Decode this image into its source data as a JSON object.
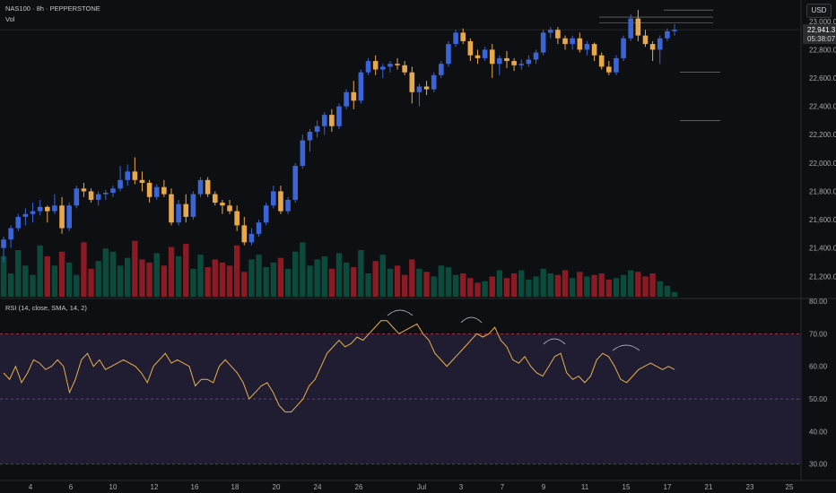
{
  "header": {
    "symbol_line": "NAS100 · 8h · PEPPERSTONE",
    "vol_label": "Vol",
    "currency_button": "USD"
  },
  "price_tag": {
    "value": "22,941.3",
    "countdown": "05:38:07"
  },
  "rsi_header": "RSI (14, close, SMA, 14, 2)",
  "colors": {
    "background": "#0e0f12",
    "up_candle": "#3b64d6",
    "down_candle": "#e8a94c",
    "vol_up": "#0c4b3c",
    "vol_down": "#8a1a24",
    "rsi_line": "#e8b04a",
    "rsi_band": "#201d33",
    "price_tag": "#2b2c30"
  },
  "chart_data": [
    {
      "type": "candlestick",
      "title": "",
      "ylim": [
        21050,
        23100
      ],
      "y_ticks": [
        "23,000.0",
        "22,800.0",
        "22,600.0",
        "22,400.0",
        "22,200.0",
        "22,000.0",
        "21,800.0",
        "21,600.0",
        "21,400.0",
        "21,200.0"
      ],
      "y_tick_values": [
        23000,
        22800,
        22600,
        22400,
        22200,
        22000,
        21800,
        21600,
        21400,
        21200
      ],
      "x_ticks": [
        "4",
        "6",
        "10",
        "12",
        "16",
        "18",
        "20",
        "24",
        "26",
        "Jul",
        "3",
        "7",
        "9",
        "11",
        "15",
        "17",
        "21",
        "23",
        "25"
      ],
      "ohlc": [
        [
          21400,
          21480,
          21300,
          21460
        ],
        [
          21460,
          21560,
          21400,
          21540
        ],
        [
          21540,
          21640,
          21520,
          21620
        ],
        [
          21620,
          21680,
          21560,
          21640
        ],
        [
          21640,
          21720,
          21580,
          21660
        ],
        [
          21660,
          21740,
          21630,
          21690
        ],
        [
          21690,
          21700,
          21580,
          21660
        ],
        [
          21660,
          21780,
          21640,
          21700
        ],
        [
          21700,
          21760,
          21500,
          21540
        ],
        [
          21540,
          21720,
          21520,
          21700
        ],
        [
          21700,
          21840,
          21680,
          21820
        ],
        [
          21820,
          21860,
          21760,
          21800
        ],
        [
          21800,
          21820,
          21720,
          21740
        ],
        [
          21740,
          21800,
          21700,
          21780
        ],
        [
          21780,
          21810,
          21740,
          21790
        ],
        [
          21790,
          21840,
          21760,
          21820
        ],
        [
          21820,
          21980,
          21800,
          21880
        ],
        [
          21880,
          21990,
          21840,
          21940
        ],
        [
          21940,
          22040,
          21850,
          21880
        ],
        [
          21880,
          21940,
          21800,
          21860
        ],
        [
          21860,
          21880,
          21720,
          21760
        ],
        [
          21760,
          21850,
          21740,
          21830
        ],
        [
          21830,
          21880,
          21760,
          21780
        ],
        [
          21780,
          21820,
          21560,
          21580
        ],
        [
          21580,
          21740,
          21560,
          21710
        ],
        [
          21710,
          21780,
          21580,
          21620
        ],
        [
          21620,
          21800,
          21600,
          21780
        ],
        [
          21780,
          21900,
          21760,
          21880
        ],
        [
          21880,
          21900,
          21760,
          21780
        ],
        [
          21780,
          21800,
          21700,
          21720
        ],
        [
          21720,
          21740,
          21640,
          21700
        ],
        [
          21700,
          21740,
          21640,
          21660
        ],
        [
          21660,
          21700,
          21520,
          21560
        ],
        [
          21560,
          21620,
          21420,
          21440
        ],
        [
          21440,
          21540,
          21420,
          21500
        ],
        [
          21500,
          21600,
          21480,
          21580
        ],
        [
          21580,
          21720,
          21560,
          21700
        ],
        [
          21700,
          21840,
          21680,
          21800
        ],
        [
          21800,
          21840,
          21640,
          21660
        ],
        [
          21660,
          21760,
          21640,
          21740
        ],
        [
          21740,
          22000,
          21720,
          21980
        ],
        [
          21980,
          22200,
          21960,
          22160
        ],
        [
          22160,
          22240,
          22080,
          22220
        ],
        [
          22220,
          22300,
          22180,
          22260
        ],
        [
          22260,
          22360,
          22200,
          22340
        ],
        [
          22340,
          22380,
          22220,
          22260
        ],
        [
          22260,
          22420,
          22240,
          22400
        ],
        [
          22400,
          22520,
          22380,
          22500
        ],
        [
          22500,
          22580,
          22380,
          22440
        ],
        [
          22440,
          22660,
          22420,
          22640
        ],
        [
          22640,
          22740,
          22620,
          22720
        ],
        [
          22720,
          22760,
          22620,
          22660
        ],
        [
          22660,
          22700,
          22600,
          22680
        ],
        [
          22680,
          22720,
          22640,
          22700
        ],
        [
          22700,
          22740,
          22660,
          22690
        ],
        [
          22690,
          22720,
          22620,
          22640
        ],
        [
          22640,
          22680,
          22420,
          22500
        ],
        [
          22500,
          22560,
          22400,
          22540
        ],
        [
          22540,
          22580,
          22480,
          22520
        ],
        [
          22520,
          22640,
          22500,
          22620
        ],
        [
          22620,
          22720,
          22600,
          22700
        ],
        [
          22700,
          22860,
          22680,
          22840
        ],
        [
          22840,
          22940,
          22820,
          22920
        ],
        [
          22920,
          22950,
          22840,
          22860
        ],
        [
          22860,
          22880,
          22720,
          22760
        ],
        [
          22760,
          22800,
          22700,
          22740
        ],
        [
          22740,
          22820,
          22720,
          22800
        ],
        [
          22800,
          22840,
          22600,
          22700
        ],
        [
          22700,
          22760,
          22620,
          22740
        ],
        [
          22740,
          22790,
          22670,
          22720
        ],
        [
          22720,
          22740,
          22650,
          22690
        ],
        [
          22690,
          22730,
          22660,
          22700
        ],
        [
          22700,
          22760,
          22680,
          22730
        ],
        [
          22730,
          22800,
          22700,
          22780
        ],
        [
          22780,
          22940,
          22760,
          22920
        ],
        [
          22920,
          22960,
          22880,
          22940
        ],
        [
          22940,
          22960,
          22840,
          22880
        ],
        [
          22880,
          22900,
          22800,
          22840
        ],
        [
          22840,
          22900,
          22800,
          22880
        ],
        [
          22880,
          22920,
          22780,
          22800
        ],
        [
          22800,
          22860,
          22760,
          22840
        ],
        [
          22840,
          22850,
          22720,
          22760
        ],
        [
          22760,
          22780,
          22660,
          22680
        ],
        [
          22680,
          22720,
          22620,
          22640
        ],
        [
          22640,
          22760,
          22620,
          22740
        ],
        [
          22740,
          22900,
          22720,
          22880
        ],
        [
          22880,
          23050,
          22860,
          23020
        ],
        [
          23020,
          23080,
          22860,
          22900
        ],
        [
          22900,
          22940,
          22820,
          22840
        ],
        [
          22840,
          22860,
          22720,
          22800
        ],
        [
          22800,
          22900,
          22700,
          22880
        ],
        [
          22880,
          22950,
          22860,
          22930
        ],
        [
          22930,
          22980,
          22900,
          22941
        ]
      ],
      "volume": [
        52,
        30,
        60,
        40,
        28,
        66,
        52,
        40,
        58,
        44,
        28,
        70,
        36,
        46,
        62,
        58,
        40,
        50,
        72,
        48,
        44,
        56,
        40,
        64,
        52,
        68,
        36,
        54,
        38,
        48,
        44,
        40,
        66,
        32,
        48,
        54,
        38,
        44,
        50,
        36,
        58,
        70,
        40,
        48,
        52,
        36,
        56,
        44,
        38,
        60,
        30,
        46,
        54,
        36,
        40,
        28,
        48,
        36,
        32,
        26,
        40,
        38,
        28,
        30,
        24,
        18,
        20,
        26,
        34,
        24,
        30,
        34,
        22,
        26,
        36,
        30,
        28,
        34,
        24,
        32,
        26,
        28,
        30,
        22,
        24,
        28,
        34,
        32,
        26,
        30,
        20,
        14,
        6
      ],
      "horizontal_levels": [
        23080,
        23030,
        22990,
        22640,
        22300
      ]
    },
    {
      "type": "line",
      "title": "",
      "ylim": [
        28,
        80
      ],
      "y_ticks": [
        "80.00",
        "70.00",
        "60.00",
        "50.00",
        "40.00",
        "30.00"
      ],
      "y_tick_values": [
        80,
        70,
        60,
        50,
        40,
        30
      ],
      "bands": {
        "upper": 70,
        "middle": 50,
        "lower": 30
      },
      "series": [
        {
          "values": [
            58,
            56,
            60,
            55,
            58,
            62,
            61,
            59,
            60,
            62,
            60,
            52,
            56,
            62,
            64,
            60,
            62,
            59,
            60,
            61,
            62,
            61,
            60,
            58,
            55,
            60,
            62,
            64,
            61,
            62,
            61,
            60,
            54,
            56,
            56,
            55,
            60,
            62,
            60,
            58,
            55,
            50,
            52,
            54,
            55,
            52,
            48,
            46,
            46,
            48,
            50,
            54,
            56,
            60,
            64,
            66,
            68,
            66,
            67,
            69,
            68,
            70,
            72,
            74,
            74,
            72,
            70,
            71,
            72,
            73,
            70,
            68,
            64,
            62,
            60,
            62,
            64,
            66,
            68,
            70,
            69,
            70,
            72,
            68,
            66,
            62,
            61,
            63,
            60,
            58,
            57,
            60,
            63,
            64,
            58,
            56,
            57,
            55,
            57,
            62,
            64,
            63,
            60,
            56,
            55,
            57,
            59,
            60,
            61,
            60,
            59,
            60,
            59
          ]
        }
      ]
    }
  ]
}
